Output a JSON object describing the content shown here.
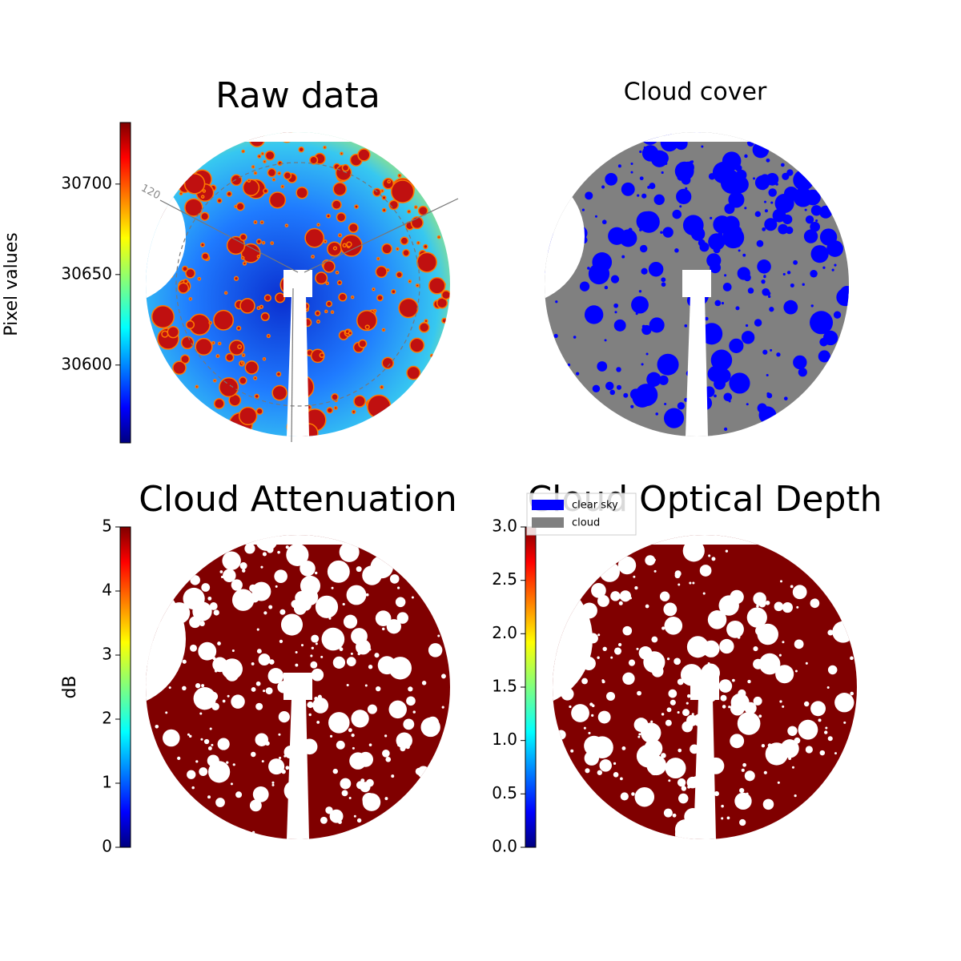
{
  "chart_data": [
    {
      "type": "image",
      "title": "Raw data",
      "ylabel": "Pixel values",
      "colormap": "jet",
      "ylim": [
        30557,
        30734
      ],
      "yticks": [
        30600,
        30650,
        30700
      ],
      "annotation": "120"
    },
    {
      "type": "image",
      "title": "Cloud cover",
      "series": [
        {
          "name": "clear sky",
          "color": "#0000ff"
        },
        {
          "name": "cloud",
          "color": "#808080"
        }
      ]
    },
    {
      "type": "image",
      "title": "Cloud Attenuation",
      "ylabel": "dB",
      "colormap": "jet",
      "ylim": [
        0,
        5
      ],
      "yticks": [
        0,
        1,
        2,
        3,
        4,
        5
      ]
    },
    {
      "type": "image",
      "title": "Cloud Optical Depth",
      "colormap": "jet",
      "ylim": [
        0,
        3
      ],
      "yticks": [
        {
          "value": 0,
          "label": "0.0"
        },
        {
          "value": 0.5,
          "label": "0.5"
        },
        {
          "value": 1,
          "label": "1.0"
        },
        {
          "value": 1.5,
          "label": "1.5"
        },
        {
          "value": 2,
          "label": "2.0"
        },
        {
          "value": 2.5,
          "label": "2.5"
        },
        {
          "value": 3,
          "label": "3.0"
        }
      ]
    }
  ]
}
